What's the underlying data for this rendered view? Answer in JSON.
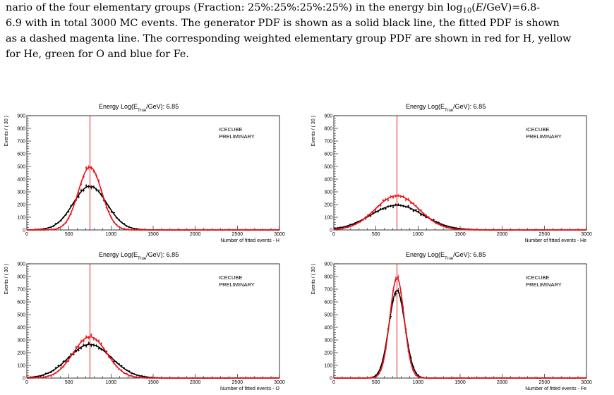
{
  "caption": {
    "line1_a": "nario of the four elementary groups (Fraction: 25%:25%:25%:25%) in the energy bin log",
    "line1_sub": "10",
    "line1_b": "(E/GeV)=6.8-",
    "line2": "6.9 with in total 3000 MC events. The generator PDF is shown as a solid black line, the fitted PDF is shown",
    "line3": "as a dashed magenta line. The corresponding weighted elementary group PDF are shown in red for H, yellow",
    "line4": "for He, green for O and blue for Fe."
  },
  "panel_common": {
    "title_prefix": "Energy Log(E",
    "title_sub": "True",
    "title_suffix": "/GeV): 6.85",
    "ylabel": "Events / ( 30 )",
    "watermark_1": "ICECUBE",
    "watermark_2": "PRELIMINARY",
    "y_ticks": [
      "0",
      "100",
      "200",
      "300",
      "400",
      "500",
      "600",
      "700",
      "800",
      "900"
    ],
    "x_ticks": [
      "0",
      "500",
      "1000",
      "1500",
      "2000",
      "2500",
      "3000"
    ]
  },
  "colors": {
    "black_series": "#000000",
    "red_series": "#e8141c",
    "frame": "#000000"
  },
  "chart_data": [
    {
      "type": "line",
      "xlabel": "Number of fitted events - H",
      "xlim": [
        0,
        3000
      ],
      "ylim": [
        0,
        900
      ],
      "marker_x": 750,
      "series": [
        {
          "color": "black",
          "shape": "gaussian",
          "mu": 750,
          "sigma": 200,
          "peak": 345
        },
        {
          "color": "red",
          "shape": "gaussian",
          "mu": 750,
          "sigma": 140,
          "peak": 495
        }
      ]
    },
    {
      "type": "line",
      "xlabel": "Number of fitted events - He",
      "xlim": [
        0,
        3000
      ],
      "ylim": [
        0,
        900
      ],
      "marker_x": 750,
      "series": [
        {
          "color": "black",
          "shape": "gaussian",
          "mu": 750,
          "sigma": 310,
          "peak": 195
        },
        {
          "color": "red",
          "shape": "gaussian",
          "mu": 750,
          "sigma": 260,
          "peak": 270
        }
      ]
    },
    {
      "type": "line",
      "xlabel": "Number of fitted events - O",
      "xlim": [
        0,
        3000
      ],
      "ylim": [
        0,
        900
      ],
      "marker_x": 750,
      "series": [
        {
          "color": "black",
          "shape": "gaussian",
          "mu": 750,
          "sigma": 255,
          "peak": 265
        },
        {
          "color": "red",
          "shape": "gaussian",
          "mu": 750,
          "sigma": 200,
          "peak": 325
        }
      ]
    },
    {
      "type": "line",
      "xlabel": "Number of fitted events - Fe",
      "xlim": [
        0,
        3000
      ],
      "ylim": [
        0,
        900
      ],
      "marker_x": 750,
      "series": [
        {
          "color": "black",
          "shape": "gaussian",
          "mu": 750,
          "sigma": 95,
          "peak": 690
        },
        {
          "color": "red",
          "shape": "gaussian",
          "mu": 750,
          "sigma": 85,
          "peak": 790
        }
      ]
    }
  ]
}
